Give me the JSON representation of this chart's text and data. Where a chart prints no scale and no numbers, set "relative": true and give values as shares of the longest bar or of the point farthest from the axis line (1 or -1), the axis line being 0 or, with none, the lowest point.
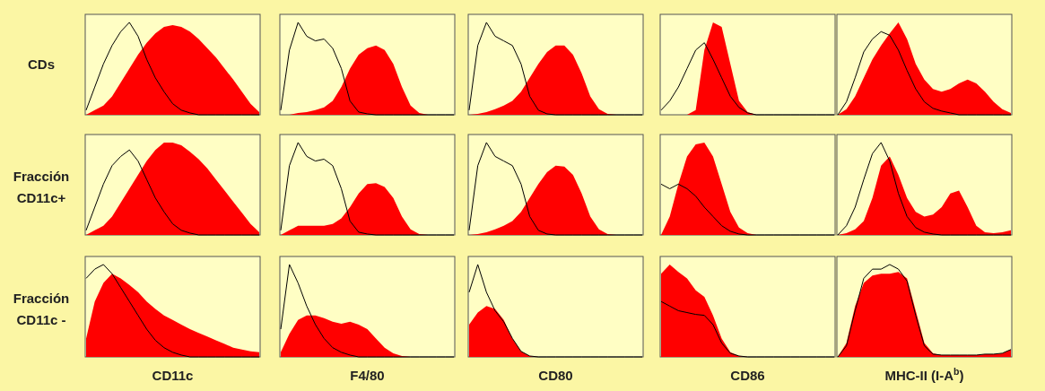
{
  "chart_data": [
    {
      "type": "area",
      "relative": true,
      "ylabel": "CDs",
      "categories": [
        null,
        null,
        null,
        null,
        null,
        null,
        null,
        null,
        null,
        null,
        null,
        null,
        null,
        null,
        null,
        null,
        null,
        null,
        null,
        null,
        null
      ],
      "series": [
        {
          "type": "area",
          "color": "#ff0000",
          "values": [
            0,
            0.05,
            0.1,
            0.2,
            0.35,
            0.5,
            0.65,
            0.78,
            0.88,
            0.95,
            0.97,
            0.95,
            0.9,
            0.82,
            0.72,
            0.62,
            0.5,
            0.38,
            0.25,
            0.12,
            0.03
          ]
        },
        {
          "type": "line",
          "color": "#000000",
          "values": [
            0.05,
            0.3,
            0.55,
            0.75,
            0.9,
            1,
            0.85,
            0.6,
            0.4,
            0.25,
            0.12,
            0.05,
            0.02,
            0,
            0,
            0,
            0,
            0,
            0,
            0,
            0
          ]
        }
      ]
    },
    {
      "type": "area",
      "relative": true,
      "categories": [
        null,
        null,
        null,
        null,
        null,
        null,
        null,
        null,
        null,
        null,
        null,
        null,
        null,
        null,
        null,
        null,
        null,
        null,
        null,
        null,
        null
      ],
      "series": [
        {
          "type": "area",
          "color": "#ff0000",
          "values": [
            0,
            0,
            0.02,
            0.03,
            0.05,
            0.08,
            0.15,
            0.3,
            0.5,
            0.65,
            0.72,
            0.75,
            0.7,
            0.55,
            0.3,
            0.1,
            0.02,
            0,
            0,
            0,
            0
          ]
        },
        {
          "type": "line",
          "color": "#000000",
          "values": [
            0.05,
            0.7,
            1,
            0.85,
            0.8,
            0.82,
            0.72,
            0.5,
            0.15,
            0.03,
            0.01,
            0,
            0,
            0,
            0,
            0,
            0,
            0,
            0,
            0,
            0
          ]
        }
      ]
    },
    {
      "type": "area",
      "relative": true,
      "categories": [
        null,
        null,
        null,
        null,
        null,
        null,
        null,
        null,
        null,
        null,
        null,
        null,
        null,
        null,
        null,
        null,
        null,
        null,
        null,
        null,
        null
      ],
      "series": [
        {
          "type": "area",
          "color": "#ff0000",
          "values": [
            0,
            0.01,
            0.03,
            0.06,
            0.1,
            0.15,
            0.25,
            0.4,
            0.55,
            0.68,
            0.75,
            0.75,
            0.65,
            0.45,
            0.2,
            0.06,
            0.01,
            0,
            0,
            0,
            0
          ]
        },
        {
          "type": "line",
          "color": "#000000",
          "values": [
            0.05,
            0.75,
            1,
            0.85,
            0.8,
            0.75,
            0.55,
            0.2,
            0.05,
            0.01,
            0,
            0,
            0,
            0,
            0,
            0,
            0,
            0,
            0,
            0,
            0
          ]
        }
      ]
    },
    {
      "type": "area",
      "relative": true,
      "categories": [
        null,
        null,
        null,
        null,
        null,
        null,
        null,
        null,
        null,
        null,
        null,
        null,
        null,
        null,
        null,
        null,
        null,
        null,
        null,
        null,
        null
      ],
      "series": [
        {
          "type": "area",
          "color": "#ff0000",
          "values": [
            0,
            0,
            0,
            0,
            0.05,
            0.7,
            1,
            0.95,
            0.55,
            0.15,
            0.03,
            0,
            0,
            0,
            0,
            0,
            0,
            0,
            0,
            0,
            0
          ]
        },
        {
          "type": "line",
          "color": "#000000",
          "values": [
            0.05,
            0.15,
            0.3,
            0.5,
            0.7,
            0.78,
            0.6,
            0.4,
            0.2,
            0.08,
            0.02,
            0,
            0,
            0,
            0,
            0,
            0,
            0,
            0,
            0,
            0
          ]
        }
      ]
    },
    {
      "type": "area",
      "relative": true,
      "categories": [
        null,
        null,
        null,
        null,
        null,
        null,
        null,
        null,
        null,
        null,
        null,
        null,
        null,
        null,
        null,
        null,
        null,
        null,
        null,
        null,
        null
      ],
      "series": [
        {
          "type": "area",
          "color": "#ff0000",
          "values": [
            0,
            0.06,
            0.2,
            0.4,
            0.6,
            0.75,
            0.88,
            1,
            0.82,
            0.55,
            0.38,
            0.28,
            0.25,
            0.28,
            0.34,
            0.38,
            0.34,
            0.25,
            0.14,
            0.06,
            0.02
          ]
        },
        {
          "type": "line",
          "color": "#000000",
          "values": [
            0,
            0.14,
            0.4,
            0.68,
            0.82,
            0.9,
            0.86,
            0.7,
            0.48,
            0.28,
            0.14,
            0.07,
            0.04,
            0.02,
            0,
            0,
            0,
            0,
            0,
            0,
            0
          ]
        }
      ]
    },
    {
      "type": "area",
      "relative": true,
      "ylabel": "Fracción CD11c+",
      "categories": [
        null,
        null,
        null,
        null,
        null,
        null,
        null,
        null,
        null,
        null,
        null,
        null,
        null,
        null,
        null,
        null,
        null,
        null,
        null,
        null,
        null
      ],
      "series": [
        {
          "type": "area",
          "color": "#ff0000",
          "values": [
            0,
            0.05,
            0.1,
            0.2,
            0.35,
            0.5,
            0.65,
            0.8,
            0.92,
            1,
            1,
            0.97,
            0.9,
            0.82,
            0.72,
            0.6,
            0.48,
            0.36,
            0.24,
            0.12,
            0.03
          ]
        },
        {
          "type": "line",
          "color": "#000000",
          "values": [
            0.05,
            0.3,
            0.55,
            0.75,
            0.85,
            0.92,
            0.8,
            0.6,
            0.4,
            0.25,
            0.12,
            0.05,
            0.02,
            0,
            0,
            0,
            0,
            0,
            0,
            0,
            0
          ]
        }
      ]
    },
    {
      "type": "area",
      "relative": true,
      "categories": [
        null,
        null,
        null,
        null,
        null,
        null,
        null,
        null,
        null,
        null,
        null,
        null,
        null,
        null,
        null,
        null,
        null,
        null,
        null,
        null,
        null
      ],
      "series": [
        {
          "type": "area",
          "color": "#ff0000",
          "values": [
            0,
            0.05,
            0.1,
            0.1,
            0.1,
            0.1,
            0.12,
            0.18,
            0.3,
            0.45,
            0.55,
            0.56,
            0.52,
            0.4,
            0.2,
            0.06,
            0.01,
            0,
            0,
            0,
            0
          ]
        },
        {
          "type": "line",
          "color": "#000000",
          "values": [
            0.05,
            0.75,
            1,
            0.85,
            0.8,
            0.82,
            0.75,
            0.5,
            0.15,
            0.03,
            0.01,
            0,
            0,
            0,
            0,
            0,
            0,
            0,
            0,
            0,
            0
          ]
        }
      ]
    },
    {
      "type": "area",
      "relative": true,
      "categories": [
        null,
        null,
        null,
        null,
        null,
        null,
        null,
        null,
        null,
        null,
        null,
        null,
        null,
        null,
        null,
        null,
        null,
        null,
        null,
        null,
        null
      ],
      "series": [
        {
          "type": "area",
          "color": "#ff0000",
          "values": [
            0,
            0.01,
            0.03,
            0.06,
            0.1,
            0.15,
            0.25,
            0.4,
            0.55,
            0.68,
            0.75,
            0.74,
            0.65,
            0.45,
            0.2,
            0.06,
            0.01,
            0,
            0,
            0,
            0
          ]
        },
        {
          "type": "line",
          "color": "#000000",
          "values": [
            0.05,
            0.75,
            1,
            0.85,
            0.8,
            0.75,
            0.55,
            0.2,
            0.05,
            0.01,
            0,
            0,
            0,
            0,
            0,
            0,
            0,
            0,
            0,
            0,
            0
          ]
        }
      ]
    },
    {
      "type": "area",
      "relative": true,
      "categories": [
        null,
        null,
        null,
        null,
        null,
        null,
        null,
        null,
        null,
        null,
        null,
        null,
        null,
        null,
        null,
        null,
        null,
        null,
        null,
        null,
        null
      ],
      "series": [
        {
          "type": "area",
          "color": "#ff0000",
          "values": [
            0,
            0.2,
            0.55,
            0.85,
            0.98,
            1,
            0.85,
            0.55,
            0.25,
            0.08,
            0.02,
            0,
            0,
            0,
            0,
            0,
            0,
            0,
            0,
            0,
            0
          ]
        },
        {
          "type": "line",
          "color": "#000000",
          "values": [
            0.55,
            0.5,
            0.55,
            0.5,
            0.42,
            0.3,
            0.2,
            0.1,
            0.04,
            0.01,
            0,
            0,
            0,
            0,
            0,
            0,
            0,
            0,
            0,
            0,
            0
          ]
        }
      ]
    },
    {
      "type": "area",
      "relative": true,
      "categories": [
        null,
        null,
        null,
        null,
        null,
        null,
        null,
        null,
        null,
        null,
        null,
        null,
        null,
        null,
        null,
        null,
        null,
        null,
        null,
        null,
        null
      ],
      "series": [
        {
          "type": "area",
          "color": "#ff0000",
          "values": [
            0,
            0.02,
            0.06,
            0.15,
            0.4,
            0.75,
            0.85,
            0.65,
            0.4,
            0.25,
            0.2,
            0.22,
            0.3,
            0.45,
            0.48,
            0.3,
            0.1,
            0.03,
            0.02,
            0.03,
            0.05
          ]
        },
        {
          "type": "line",
          "color": "#000000",
          "values": [
            0,
            0.1,
            0.3,
            0.6,
            0.88,
            1,
            0.8,
            0.45,
            0.2,
            0.08,
            0.03,
            0.01,
            0,
            0,
            0,
            0,
            0,
            0,
            0,
            0,
            0
          ]
        }
      ]
    },
    {
      "type": "area",
      "relative": true,
      "ylabel": "Fracción CD11c -",
      "xlabel": "CD11c",
      "categories": [
        null,
        null,
        null,
        null,
        null,
        null,
        null,
        null,
        null,
        null,
        null,
        null,
        null,
        null,
        null,
        null,
        null,
        null,
        null,
        null,
        null
      ],
      "series": [
        {
          "type": "area",
          "color": "#ff0000",
          "values": [
            0.2,
            0.6,
            0.8,
            0.9,
            0.85,
            0.78,
            0.7,
            0.6,
            0.52,
            0.45,
            0.4,
            0.35,
            0.3,
            0.26,
            0.22,
            0.18,
            0.14,
            0.1,
            0.08,
            0.06,
            0.05
          ]
        },
        {
          "type": "line",
          "color": "#000000",
          "values": [
            0.85,
            0.95,
            1,
            0.9,
            0.75,
            0.6,
            0.45,
            0.3,
            0.18,
            0.1,
            0.05,
            0.02,
            0,
            0,
            0,
            0,
            0,
            0,
            0,
            0,
            0
          ]
        }
      ]
    },
    {
      "type": "area",
      "relative": true,
      "categories": [
        null,
        null,
        null,
        null,
        null,
        null,
        null,
        null,
        null,
        null,
        null,
        null,
        null,
        null,
        null,
        null,
        null,
        null,
        null,
        null,
        null
      ],
      "series": [
        {
          "type": "area",
          "color": "#ff0000",
          "values": [
            0.05,
            0.25,
            0.4,
            0.45,
            0.45,
            0.42,
            0.38,
            0.36,
            0.38,
            0.35,
            0.3,
            0.2,
            0.1,
            0.04,
            0.01,
            0,
            0,
            0,
            0,
            0,
            0
          ]
        },
        {
          "type": "line",
          "color": "#000000",
          "values": [
            0.3,
            1,
            0.8,
            0.55,
            0.35,
            0.2,
            0.1,
            0.05,
            0.02,
            0,
            0,
            0,
            0,
            0,
            0,
            0,
            0,
            0,
            0,
            0,
            0
          ]
        }
      ],
      "xlabel": "F4/80"
    },
    {
      "type": "area",
      "relative": true,
      "categories": [
        null,
        null,
        null,
        null,
        null,
        null,
        null,
        null,
        null,
        null,
        null,
        null,
        null,
        null,
        null,
        null,
        null,
        null,
        null,
        null,
        null
      ],
      "series": [
        {
          "type": "area",
          "color": "#ff0000",
          "values": [
            0.35,
            0.48,
            0.55,
            0.52,
            0.4,
            0.2,
            0.06,
            0.01,
            0,
            0,
            0,
            0,
            0,
            0,
            0,
            0,
            0,
            0,
            0,
            0,
            0
          ]
        },
        {
          "type": "line",
          "color": "#000000",
          "values": [
            0.7,
            1,
            0.7,
            0.5,
            0.38,
            0.2,
            0.06,
            0.01,
            0,
            0,
            0,
            0,
            0,
            0,
            0,
            0,
            0,
            0,
            0,
            0,
            0
          ]
        }
      ],
      "xlabel": "CD80"
    },
    {
      "type": "area",
      "relative": true,
      "categories": [
        null,
        null,
        null,
        null,
        null,
        null,
        null,
        null,
        null,
        null,
        null,
        null,
        null,
        null,
        null,
        null,
        null,
        null,
        null,
        null,
        null
      ],
      "series": [
        {
          "type": "area",
          "color": "#ff0000",
          "values": [
            0.9,
            1,
            0.92,
            0.85,
            0.72,
            0.65,
            0.45,
            0.2,
            0.05,
            0.01,
            0,
            0,
            0,
            0,
            0,
            0,
            0,
            0,
            0,
            0,
            0
          ]
        },
        {
          "type": "line",
          "color": "#000000",
          "values": [
            0.6,
            0.55,
            0.5,
            0.48,
            0.46,
            0.45,
            0.35,
            0.15,
            0.04,
            0.01,
            0,
            0,
            0,
            0,
            0,
            0,
            0,
            0,
            0,
            0,
            0
          ]
        }
      ],
      "xlabel": "CD86"
    },
    {
      "type": "area",
      "relative": true,
      "categories": [
        null,
        null,
        null,
        null,
        null,
        null,
        null,
        null,
        null,
        null,
        null,
        null,
        null,
        null,
        null,
        null,
        null,
        null,
        null,
        null,
        null
      ],
      "series": [
        {
          "type": "area",
          "color": "#ff0000",
          "values": [
            0,
            0.15,
            0.55,
            0.8,
            0.88,
            0.9,
            0.9,
            0.92,
            0.85,
            0.5,
            0.15,
            0.04,
            0.02,
            0.02,
            0.02,
            0.02,
            0.02,
            0.03,
            0.03,
            0.04,
            0.08
          ]
        },
        {
          "type": "line",
          "color": "#000000",
          "values": [
            0,
            0.12,
            0.5,
            0.85,
            0.95,
            0.95,
            1,
            0.95,
            0.82,
            0.45,
            0.12,
            0.03,
            0.02,
            0.02,
            0.02,
            0.02,
            0.02,
            0.03,
            0.03,
            0.04,
            0.08
          ]
        }
      ],
      "xlabel": "MHC-II (I-A$^{b}$)"
    }
  ]
}
